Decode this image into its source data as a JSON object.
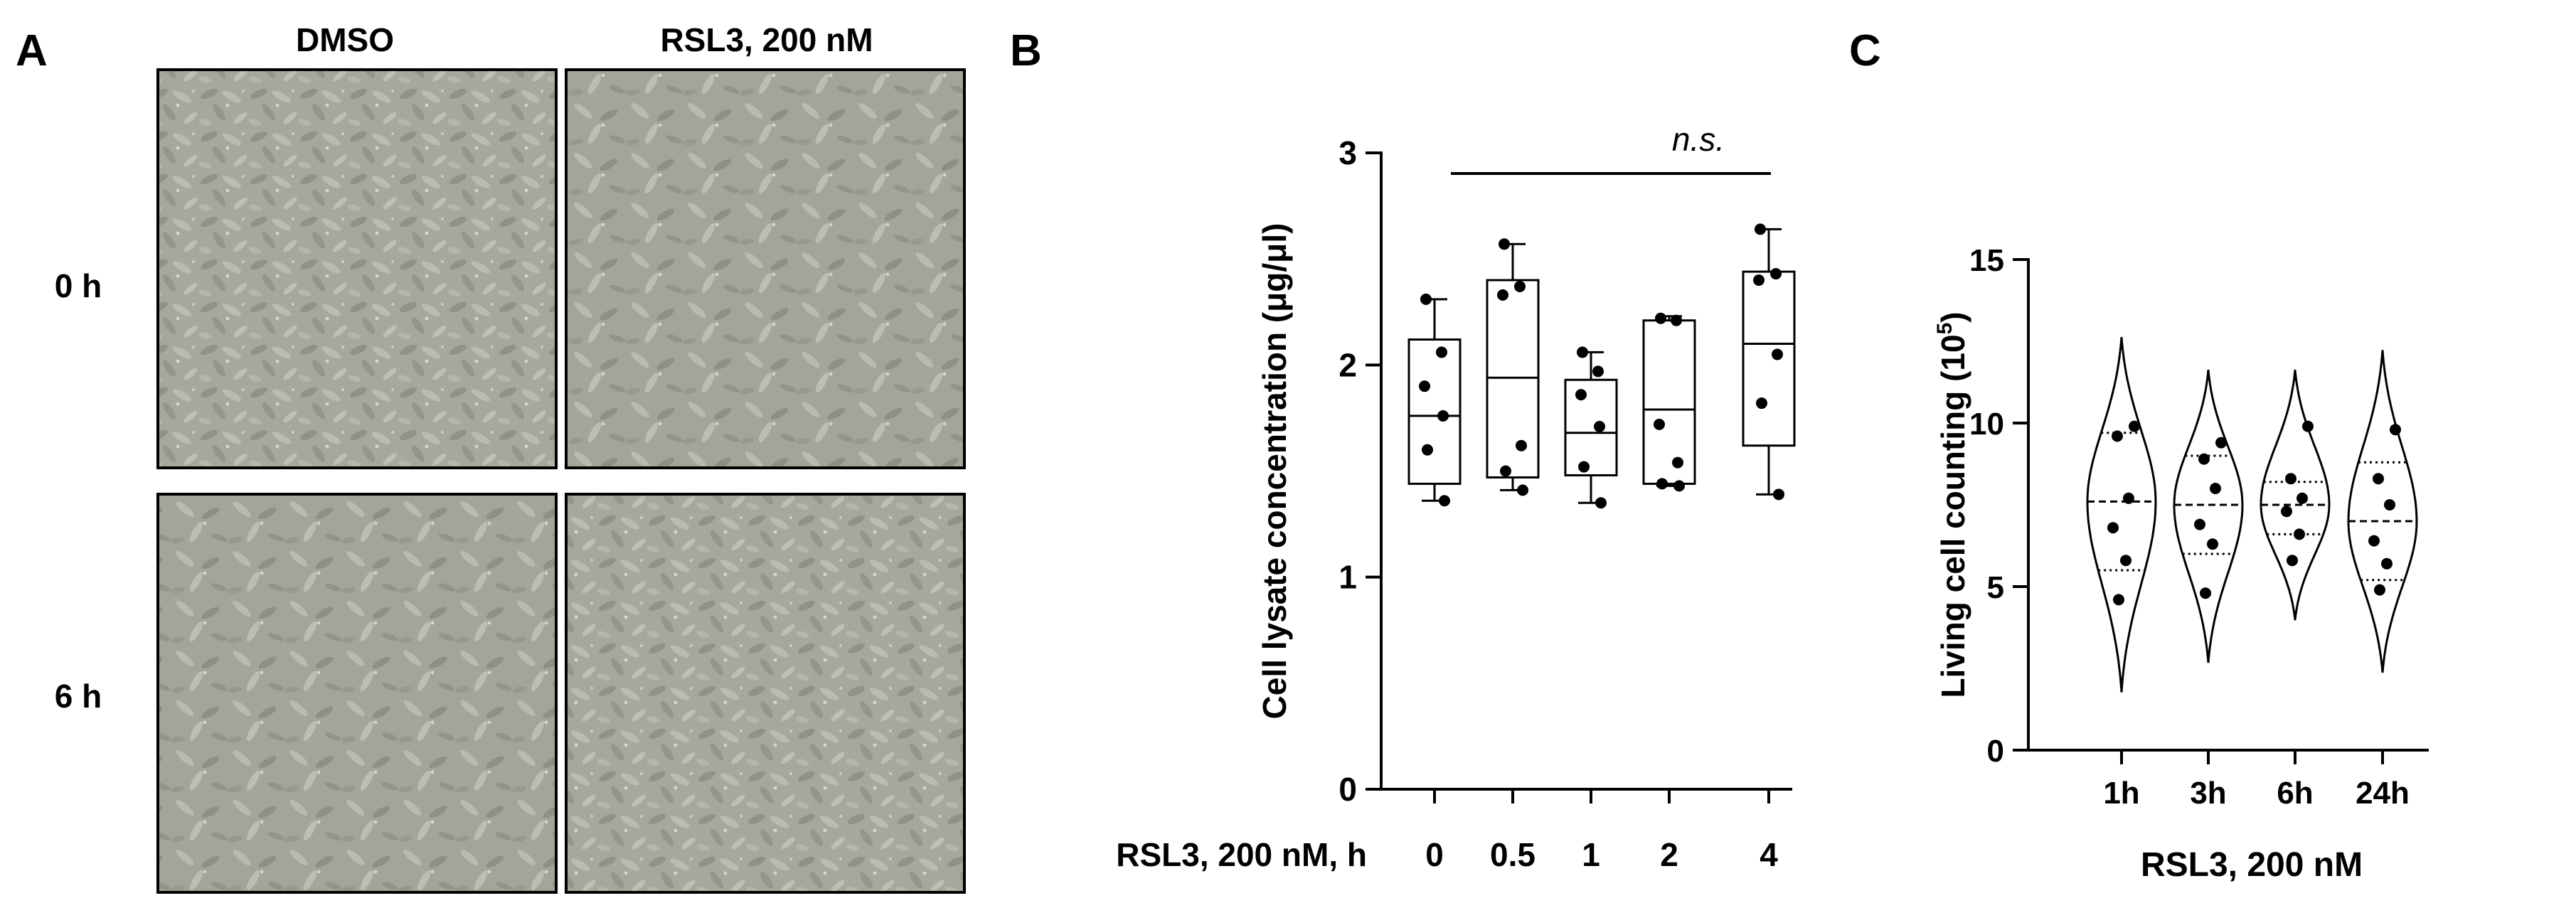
{
  "panels": {
    "A": {
      "letter": "A",
      "columns": [
        "DMSO",
        "RSL3, 200 nM"
      ],
      "rows": [
        "0 h",
        "6 h"
      ],
      "images": [
        {
          "condition": "DMSO",
          "time": "0 h",
          "icon": "micrograph-image"
        },
        {
          "condition": "RSL3, 200 nM",
          "time": "0 h",
          "icon": "micrograph-image"
        },
        {
          "condition": "DMSO",
          "time": "6 h",
          "icon": "micrograph-image"
        },
        {
          "condition": "RSL3, 200 nM",
          "time": "6 h",
          "icon": "micrograph-image"
        }
      ]
    },
    "B": {
      "letter": "B"
    },
    "C": {
      "letter": "C"
    }
  },
  "chart_data": [
    {
      "type": "box",
      "panel": "B",
      "title": "",
      "xlabel": "RSL3, 200 nM, h",
      "ylabel": "Cell lysate concentration (μg/μl)",
      "ylim": [
        0,
        3
      ],
      "yticks": [
        "0",
        "1",
        "2",
        "3"
      ],
      "categories": [
        "0",
        "0.5",
        "1",
        "2",
        "4"
      ],
      "annotation": "n.s.",
      "boxes": [
        {
          "min": 1.36,
          "q1": 1.44,
          "median": 1.76,
          "q3": 2.12,
          "max": 2.31
        },
        {
          "min": 1.41,
          "q1": 1.47,
          "median": 1.94,
          "q3": 2.4,
          "max": 2.57
        },
        {
          "min": 1.35,
          "q1": 1.48,
          "median": 1.68,
          "q3": 1.93,
          "max": 2.06
        },
        {
          "min": 1.43,
          "q1": 1.44,
          "median": 1.79,
          "q3": 2.21,
          "max": 2.23
        },
        {
          "min": 1.39,
          "q1": 1.62,
          "median": 2.1,
          "q3": 2.44,
          "max": 2.64
        }
      ],
      "points": [
        [
          2.31,
          2.06,
          1.9,
          1.76,
          1.6,
          1.36
        ],
        [
          2.57,
          2.37,
          2.33,
          1.62,
          1.5,
          1.41
        ],
        [
          2.06,
          1.97,
          1.86,
          1.71,
          1.52,
          1.35
        ],
        [
          2.22,
          2.21,
          1.72,
          1.54,
          1.44,
          1.43
        ],
        [
          2.64,
          2.43,
          2.4,
          2.05,
          1.82,
          1.39
        ]
      ]
    },
    {
      "type": "violin",
      "panel": "C",
      "title": "",
      "xlabel": "RSL3, 200 nM",
      "ylabel": "Living cell counting (10",
      "ylabel_sup": "5",
      "ylabel_end": ")",
      "ylim": [
        0,
        15
      ],
      "yticks": [
        "0",
        "5",
        "10",
        "15"
      ],
      "categories": [
        "1h",
        "3h",
        "6h",
        "24h"
      ],
      "violins": [
        {
          "min": 1.8,
          "max": 12.6,
          "median": 7.6,
          "q1": 5.5,
          "q3": 9.7
        },
        {
          "min": 2.7,
          "max": 11.6,
          "median": 7.5,
          "q1": 6.0,
          "q3": 9.0
        },
        {
          "min": 4.0,
          "max": 11.6,
          "median": 7.5,
          "q1": 6.6,
          "q3": 8.2
        },
        {
          "min": 2.4,
          "max": 12.2,
          "median": 7.0,
          "q1": 5.2,
          "q3": 8.8
        }
      ],
      "points": [
        [
          9.9,
          9.6,
          7.7,
          6.8,
          5.8,
          4.6
        ],
        [
          9.4,
          8.9,
          8.0,
          6.9,
          6.3,
          4.8
        ],
        [
          9.9,
          8.3,
          7.7,
          7.3,
          6.6,
          5.8
        ],
        [
          9.8,
          8.3,
          7.5,
          6.4,
          5.7,
          4.9
        ]
      ]
    }
  ]
}
